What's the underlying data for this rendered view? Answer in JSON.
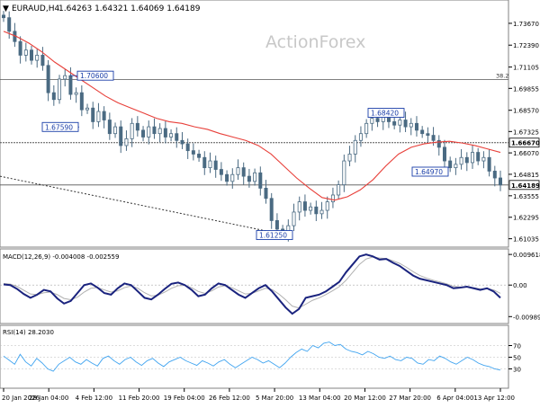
{
  "header": {
    "symbol": "EURAUD,H4",
    "ohlc": "1.64263 1.64321 1.64069 1.64189",
    "watermark": "ActionForex"
  },
  "colors": {
    "candle": "#4a6a82",
    "ma": "#e8403a",
    "macd_line": "#1a237e",
    "macd_signal": "#b0b0b0",
    "rsi": "#40a4f0",
    "label_border": "#1a3ea8",
    "label_text": "#1a3ea8",
    "hline": "#555555",
    "trendline": "#333333"
  },
  "chart_data": [
    {
      "type": "candlestick",
      "title": "EURAUD,H4",
      "ylim": [
        1.607,
        1.743
      ],
      "yticks": [
        "1.73670",
        "1.72390",
        "1.71105",
        "1.69855",
        "1.68570",
        "1.67325",
        "1.66070",
        "1.64815",
        "1.63555",
        "1.62295",
        "1.61035"
      ],
      "x_tick_labels": [
        "20 Jan 2026",
        "28 Jan 04:00",
        "4 Feb 12:00",
        "11 Feb 20:00",
        "19 Feb 04:00",
        "26 Feb 12:00",
        "5 Mar 20:00",
        "13 Mar 04:00",
        "20 Mar 12:00",
        "27 Mar 20:00",
        "6 Apr 04:00",
        "13 Apr 12:00"
      ],
      "horizontal_levels": [
        {
          "label": "38.2",
          "value": 1.7038
        },
        {
          "label": "1.66670",
          "value": 1.6667
        },
        {
          "label": "1.64189",
          "value": 1.64189
        }
      ],
      "price_labels": [
        {
          "text": "1.70600",
          "value": 1.706
        },
        {
          "text": "1.67590",
          "value": 1.6759
        },
        {
          "text": "1.68420",
          "value": 1.6842
        },
        {
          "text": "1.64970",
          "value": 1.6497
        },
        {
          "text": "1.61250",
          "value": 1.6125
        }
      ],
      "close_path": [
        1.74,
        1.732,
        1.726,
        1.718,
        1.721,
        1.715,
        1.718,
        1.712,
        1.696,
        1.692,
        1.704,
        1.706,
        1.695,
        1.696,
        1.686,
        1.687,
        1.679,
        1.685,
        1.68,
        1.672,
        1.676,
        1.665,
        1.669,
        1.678,
        1.674,
        1.67,
        1.676,
        1.672,
        1.675,
        1.67,
        1.672,
        1.668,
        1.666,
        1.662,
        1.66,
        1.658,
        1.652,
        1.656,
        1.651,
        1.648,
        1.644,
        1.648,
        1.652,
        1.647,
        1.644,
        1.649,
        1.64,
        1.634,
        1.621,
        1.616,
        1.613,
        1.618,
        1.626,
        1.632,
        1.627,
        1.629,
        1.625,
        1.627,
        1.632,
        1.636,
        1.642,
        1.656,
        1.66,
        1.668,
        1.672,
        1.678,
        1.681,
        1.679,
        1.682,
        1.679,
        1.677,
        1.68,
        1.676,
        1.678,
        1.674,
        1.672,
        1.671,
        1.668,
        1.664,
        1.656,
        1.652,
        1.654,
        1.658,
        1.655,
        1.661,
        1.656,
        1.658,
        1.65,
        1.646,
        1.6419
      ],
      "moving_average_path": [
        1.732,
        1.729,
        1.725,
        1.72,
        1.714,
        1.709,
        1.704,
        1.699,
        1.694,
        1.69,
        1.687,
        1.684,
        1.681,
        1.679,
        1.678,
        1.676,
        1.6745,
        1.672,
        1.67,
        1.668,
        1.665,
        1.66,
        1.653,
        1.646,
        1.64,
        1.6345,
        1.633,
        1.635,
        1.639,
        1.645,
        1.653,
        1.66,
        1.664,
        1.666,
        1.667,
        1.6675,
        1.6665,
        1.665,
        1.663,
        1.661
      ]
    },
    {
      "type": "line",
      "title": "MACD(12,26,9) -0.004008 -0.002559",
      "ylim": [
        -0.0115,
        0.0105
      ],
      "yticks": [
        "0.009618",
        "0.00",
        "-0.009892"
      ],
      "series": [
        {
          "values": [
            0.0002,
            0.0,
            -0.0012,
            -0.0028,
            -0.004,
            -0.003,
            -0.0015,
            -0.002,
            -0.0042,
            -0.0058,
            -0.005,
            -0.0025,
            0.0,
            0.0005,
            -0.0008,
            -0.0025,
            -0.003,
            -0.001,
            0.0005,
            0.0,
            -0.002,
            -0.004,
            -0.0045,
            -0.003,
            -0.0012,
            0.0004,
            0.0008,
            0.0,
            -0.0015,
            -0.0035,
            -0.003,
            -0.001,
            0.0005,
            0.0,
            -0.0015,
            -0.003,
            -0.004,
            -0.0025,
            -0.001,
            0.0,
            -0.002,
            -0.0045,
            -0.007,
            -0.009,
            -0.0075,
            -0.004,
            -0.0035,
            -0.003,
            -0.002,
            -0.0005,
            0.001,
            0.004,
            0.0065,
            0.009,
            0.0096,
            0.009,
            0.008,
            0.0082,
            0.007,
            0.006,
            0.0045,
            0.003,
            0.002,
            0.0015,
            0.001,
            0.0005,
            0.0,
            -0.001,
            -0.0008,
            -0.0005,
            -0.001,
            -0.0015,
            -0.001,
            -0.002,
            -0.004
          ]
        },
        {
          "values": [
            0.0005,
            0.0003,
            -0.0004,
            -0.0016,
            -0.0028,
            -0.003,
            -0.0024,
            -0.0022,
            -0.003,
            -0.0042,
            -0.0046,
            -0.0038,
            -0.0022,
            -0.001,
            -0.0008,
            -0.0015,
            -0.0022,
            -0.0018,
            -0.0008,
            -0.0003,
            -0.001,
            -0.0024,
            -0.0034,
            -0.0032,
            -0.0022,
            -0.001,
            -0.0002,
            -0.0001,
            -0.0008,
            -0.002,
            -0.0026,
            -0.0018,
            -0.0006,
            -0.0002,
            -0.0008,
            -0.0018,
            -0.0028,
            -0.0026,
            -0.0018,
            -0.001,
            -0.0014,
            -0.0028,
            -0.0046,
            -0.0066,
            -0.0072,
            -0.006,
            -0.0048,
            -0.004,
            -0.003,
            -0.0018,
            -0.0005,
            0.0015,
            0.004,
            0.0065,
            0.0082,
            0.0088,
            0.0085,
            0.0083,
            0.0076,
            0.0068,
            0.0056,
            0.0042,
            0.003,
            0.0022,
            0.0015,
            0.001,
            0.0004,
            -0.0004,
            -0.0006,
            -0.0006,
            -0.0008,
            -0.0012,
            -0.0011,
            -0.0015,
            -0.0026
          ]
        }
      ]
    },
    {
      "type": "line",
      "title": "RSI(14) 28.2030",
      "ylim": [
        0,
        100
      ],
      "yticks": [
        "70",
        "50",
        "30"
      ],
      "series": [
        {
          "values": [
            52,
            45,
            38,
            55,
            42,
            35,
            48,
            40,
            30,
            26,
            38,
            44,
            50,
            42,
            38,
            46,
            40,
            35,
            48,
            52,
            44,
            38,
            46,
            50,
            42,
            36,
            44,
            48,
            40,
            34,
            42,
            46,
            50,
            44,
            40,
            36,
            44,
            40,
            35,
            42,
            46,
            38,
            32,
            38,
            44,
            50,
            46,
            40,
            44,
            38,
            32,
            40,
            50,
            58,
            64,
            60,
            70,
            66,
            74,
            76,
            70,
            72,
            64,
            60,
            58,
            54,
            60,
            56,
            50,
            48,
            52,
            46,
            44,
            50,
            48,
            40,
            38,
            46,
            44,
            52,
            48,
            42,
            38,
            44,
            50,
            46,
            40,
            36,
            34,
            30,
            28
          ]
        }
      ]
    }
  ]
}
